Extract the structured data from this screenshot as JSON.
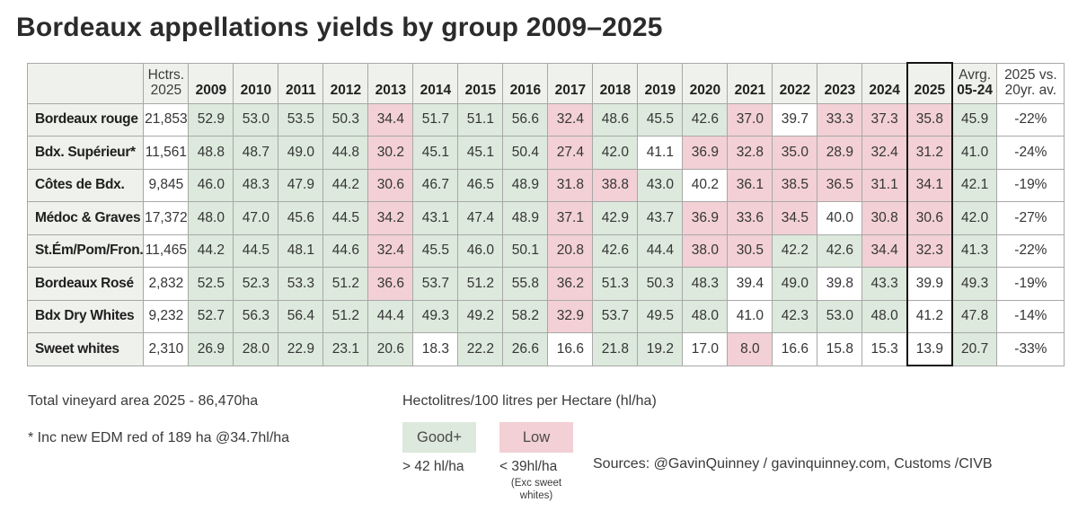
{
  "title": "Bordeaux appellations yields by group 2009–2025",
  "colors": {
    "good": "#dce9dc",
    "low": "#f2d0d5",
    "header_bg": "#eff1ec",
    "grid": "#a8a8a8",
    "highlight_border": "#141414"
  },
  "chart_data": {
    "type": "heatmap",
    "title": "Bordeaux appellations yields by group 2009–2025",
    "unit_note": "Hectolitres/100 litres per Hectare (hl/ha)",
    "columns": {
      "area_header": [
        "Hctrs.",
        "2025"
      ],
      "years": [
        "2009",
        "2010",
        "2011",
        "2012",
        "2013",
        "2014",
        "2015",
        "2016",
        "2017",
        "2018",
        "2019",
        "2020",
        "2021",
        "2022",
        "2023",
        "2024",
        "2025"
      ],
      "avg_header": [
        "Avrg.",
        "05-24"
      ],
      "vs_header": [
        "2025 vs.",
        "20yr. av."
      ]
    },
    "highlight_year": "2025",
    "legend": {
      "good_label": "Good+",
      "good_rule": "> 42 hl/ha",
      "low_label": "Low",
      "low_rule": "< 39hl/ha",
      "low_rule_note": "(Exc sweet whites)"
    },
    "rows": [
      {
        "label": "Bordeaux rouge",
        "hectares": "21,853",
        "values": [
          "52.9",
          "53.0",
          "53.5",
          "50.3",
          "34.4",
          "51.7",
          "51.1",
          "56.6",
          "32.4",
          "48.6",
          "45.5",
          "42.6",
          "37.0",
          "39.7",
          "33.3",
          "37.3",
          "35.8"
        ],
        "colors": "ggggrgggrgggrwrrr",
        "avg": "45.9",
        "avg_color": "g",
        "vs": "-22%"
      },
      {
        "label": "Bdx. Supérieur*",
        "hectares": "11,561",
        "values": [
          "48.8",
          "48.7",
          "49.0",
          "44.8",
          "30.2",
          "45.1",
          "45.1",
          "50.4",
          "27.4",
          "42.0",
          "41.1",
          "36.9",
          "32.8",
          "35.0",
          "28.9",
          "32.4",
          "31.2"
        ],
        "colors": "ggggrgggrgwrrrrrr",
        "avg": "41.0",
        "avg_color": "g",
        "vs": "-24%"
      },
      {
        "label": "Côtes de Bdx.",
        "hectares": "9,845",
        "values": [
          "46.0",
          "48.3",
          "47.9",
          "44.2",
          "30.6",
          "46.7",
          "46.5",
          "48.9",
          "31.8",
          "38.8",
          "43.0",
          "40.2",
          "36.1",
          "38.5",
          "36.5",
          "31.1",
          "34.1"
        ],
        "colors": "ggggrgggrrgwrrrrr",
        "avg": "42.1",
        "avg_color": "g",
        "vs": "-19%"
      },
      {
        "label": "Médoc & Graves",
        "hectares": "17,372",
        "values": [
          "48.0",
          "47.0",
          "45.6",
          "44.5",
          "34.2",
          "43.1",
          "47.4",
          "48.9",
          "37.1",
          "42.9",
          "43.7",
          "36.9",
          "33.6",
          "34.5",
          "40.0",
          "30.8",
          "30.6"
        ],
        "colors": "ggggrgggrggrrrwrr",
        "avg": "42.0",
        "avg_color": "g",
        "vs": "-27%"
      },
      {
        "label": "St.Ém/Pom/Fron.",
        "hectares": "11,465",
        "values": [
          "44.2",
          "44.5",
          "48.1",
          "44.6",
          "32.4",
          "45.5",
          "46.0",
          "50.1",
          "20.8",
          "42.6",
          "44.4",
          "38.0",
          "30.5",
          "42.2",
          "42.6",
          "34.4",
          "32.3"
        ],
        "colors": "ggggrgggrggrrggrr",
        "avg": "41.3",
        "avg_color": "g",
        "vs": "-22%"
      },
      {
        "label": "Bordeaux Rosé",
        "hectares": "2,832",
        "values": [
          "52.5",
          "52.3",
          "53.3",
          "51.2",
          "36.6",
          "53.7",
          "51.2",
          "55.8",
          "36.2",
          "51.3",
          "50.3",
          "48.3",
          "39.4",
          "49.0",
          "39.8",
          "43.3",
          "39.9"
        ],
        "colors": "ggggrgggrgggwgwgw",
        "avg": "49.3",
        "avg_color": "g",
        "vs": "-19%"
      },
      {
        "label": "Bdx Dry Whites",
        "hectares": "9,232",
        "values": [
          "52.7",
          "56.3",
          "56.4",
          "51.2",
          "44.4",
          "49.3",
          "49.2",
          "58.2",
          "32.9",
          "53.7",
          "49.5",
          "48.0",
          "41.0",
          "42.3",
          "53.0",
          "48.0",
          "41.2"
        ],
        "colors": "ggggggggrgggwgggw",
        "avg": "47.8",
        "avg_color": "g",
        "vs": "-14%"
      },
      {
        "label": "Sweet whites",
        "hectares": "2,310",
        "values": [
          "26.9",
          "28.0",
          "22.9",
          "23.1",
          "20.6",
          "18.3",
          "22.2",
          "26.6",
          "16.6",
          "21.8",
          "19.2",
          "17.0",
          "8.0",
          "16.6",
          "15.8",
          "15.3",
          "13.9"
        ],
        "colors": "gggggwggwggwrwwww",
        "avg": "20.7",
        "avg_color": "g",
        "vs": "-33%"
      }
    ]
  },
  "footnotes": {
    "total_area": "Total vineyard area 2025 - 86,470ha",
    "edm_note": "* Inc new EDM red of 189 ha @34.7hl/ha"
  },
  "sources": "Sources: @GavinQuinney / gavinquinney.com, Customs /CIVB"
}
